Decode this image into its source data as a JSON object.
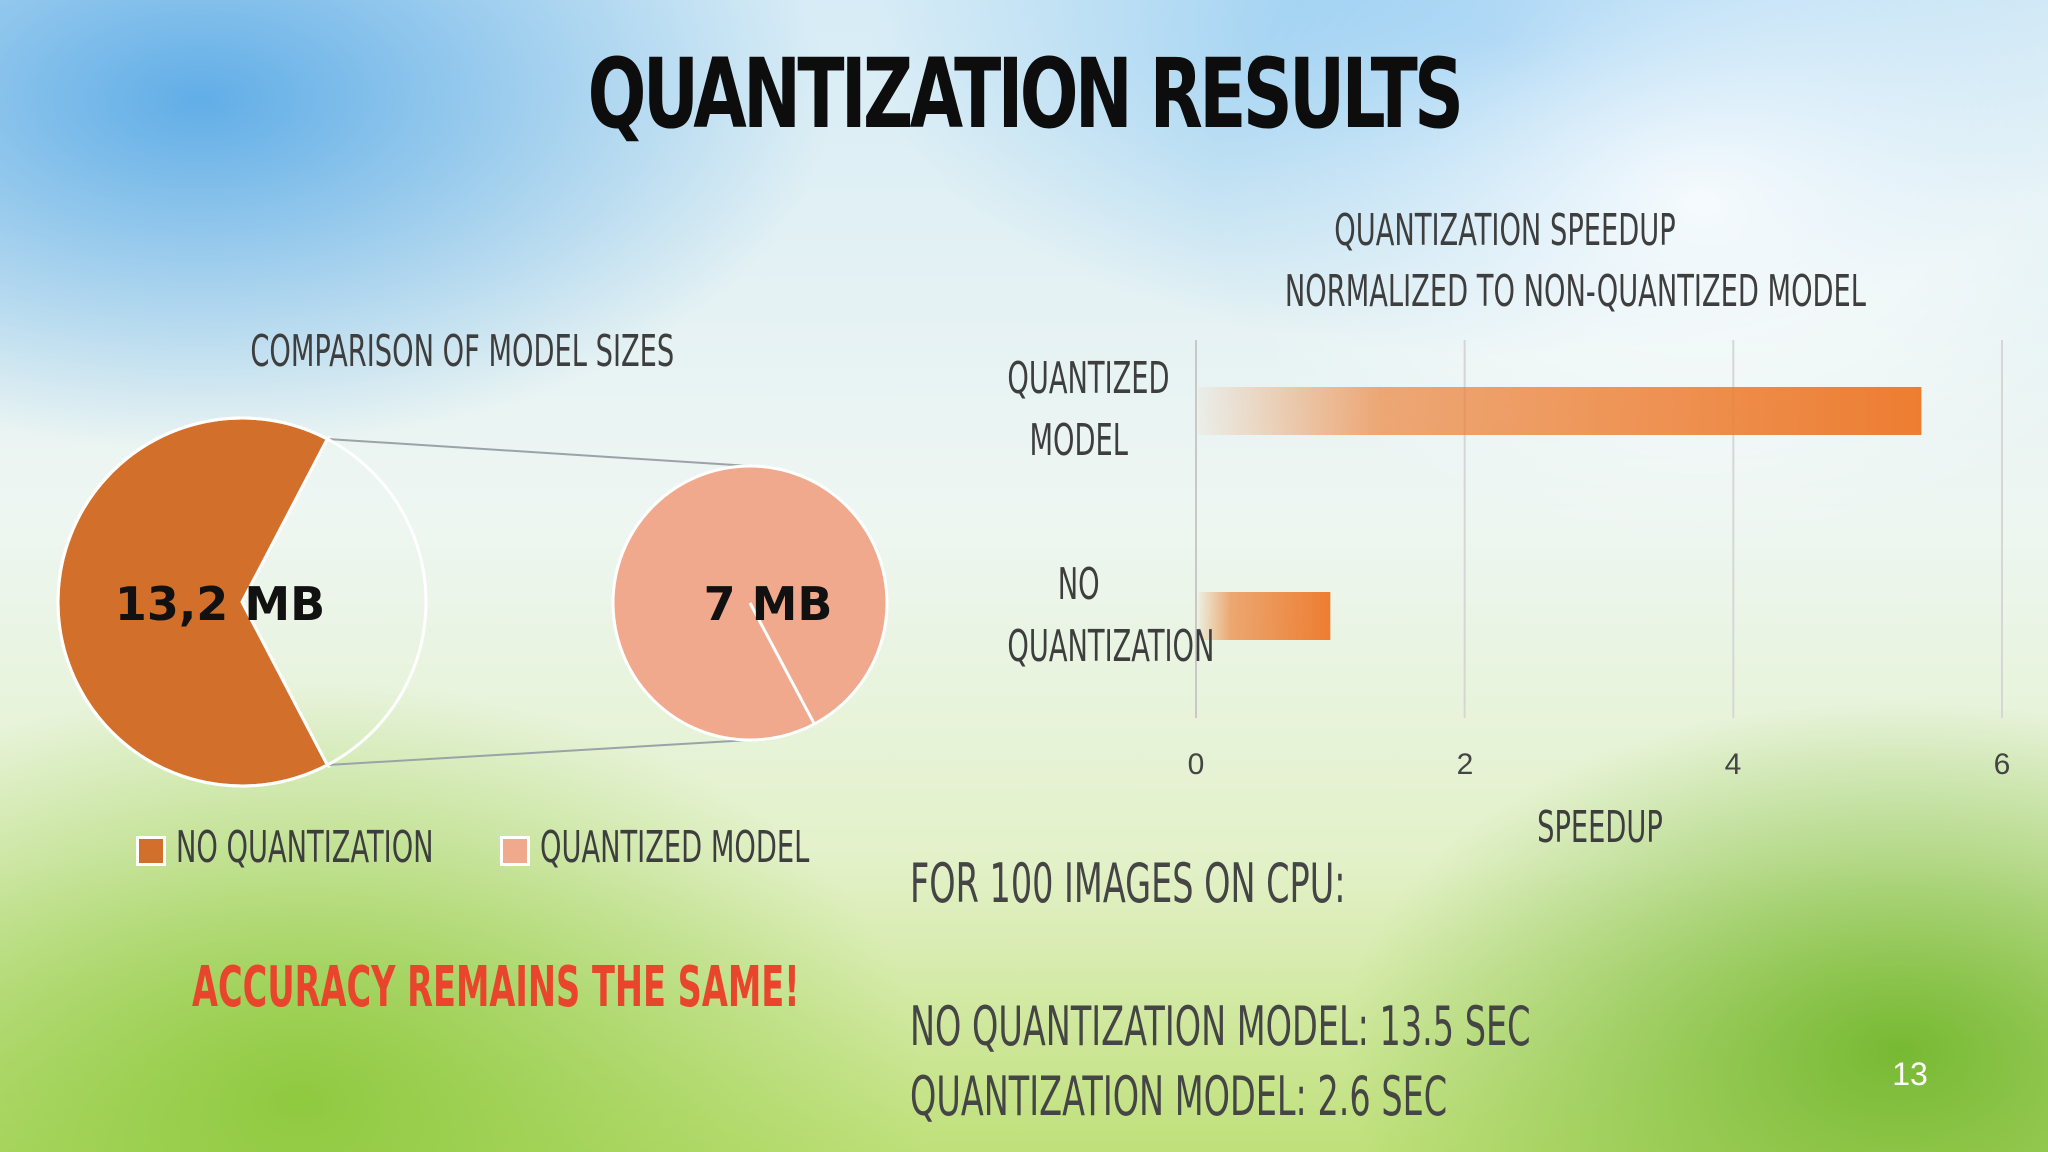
{
  "slide": {
    "title": "QUANTIZATION RESULTS",
    "accuracy_note": "ACCURACY REMAINS THE SAME!",
    "cpu_heading": "FOR 100 IMAGES ON CPU:",
    "cpu_no_quant": "NO QUANTIZATION MODEL: 13.5 SEC",
    "cpu_quant": "QUANTIZATION MODEL: 2.6 SEC",
    "page_number": "13"
  },
  "chart_data": [
    {
      "type": "pie",
      "title": "COMPARISON  OF MODEL SIZES",
      "categories": [
        "NO QUANTIZATION",
        "QUANTIZED MODEL"
      ],
      "values": [
        13.2,
        7
      ],
      "data_labels": [
        "13,2 MB",
        "7 MB"
      ],
      "legend": [
        "NO QUANTIZATION",
        "QUANTIZED MODEL"
      ],
      "legend_position": "bottom",
      "colors": [
        "#d2702b",
        "#f1a98d"
      ],
      "highlight_color": "#fbe3db"
    },
    {
      "type": "bar",
      "orientation": "horizontal",
      "title_lines": [
        "QUANTIZATION SPEEDUP",
        "NORMALIZED TO NON-QUANTIZED MODEL"
      ],
      "categories": [
        "QUANTIZED MODEL",
        "NO QUANTIZATION"
      ],
      "category_label_lines": [
        [
          "QUANTIZED",
          "MODEL"
        ],
        [
          "NO",
          "QUANTIZATION"
        ]
      ],
      "values": [
        5.4,
        1
      ],
      "xlabel": "SPEEDUP",
      "xlim": [
        0,
        6
      ],
      "xticks": [
        "0",
        "2",
        "4",
        "6"
      ],
      "grid": true,
      "bar_color": "#ed7d31"
    }
  ]
}
